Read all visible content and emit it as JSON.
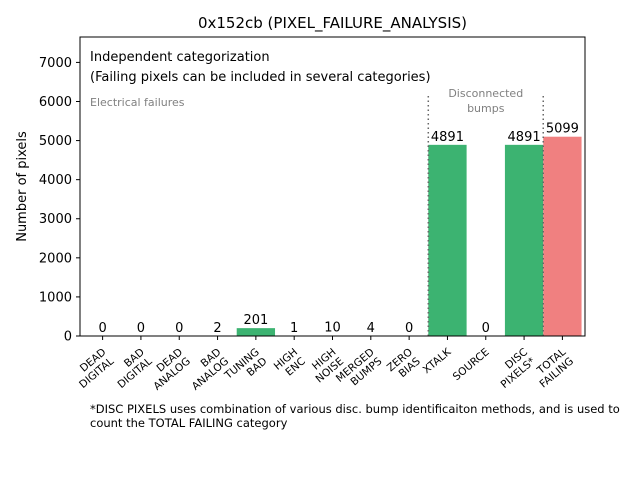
{
  "chart_data": {
    "type": "bar",
    "title": "0x152cb (PIXEL_FAILURE_ANALYSIS)",
    "xlabel": "",
    "ylabel": "Number of pixels",
    "ylim": [
      0,
      7650
    ],
    "yticks": [
      0,
      1000,
      2000,
      3000,
      4000,
      5000,
      6000,
      7000
    ],
    "grid": false,
    "categories": [
      "DEAD\nDIGITAL",
      "BAD\nDIGITAL",
      "DEAD\nANALOG",
      "BAD\nANALOG",
      "TUNING\nBAD",
      "HIGH\nENC",
      "HIGH\nNOISE",
      "MERGED\nBUMPS",
      "ZERO\nBIAS",
      "XTALK",
      "SOURCE",
      "DISC\nPIXELS*",
      "TOTAL\nFAILING"
    ],
    "values": [
      0,
      0,
      0,
      2,
      201,
      1,
      10,
      4,
      0,
      4891,
      0,
      4891,
      5099
    ],
    "bar_colors": [
      "#3cb371",
      "#3cb371",
      "#3cb371",
      "#3cb371",
      "#3cb371",
      "#3cb371",
      "#3cb371",
      "#3cb371",
      "#3cb371",
      "#3cb371",
      "#3cb371",
      "#3cb371",
      "#f08080"
    ],
    "annotations": {
      "categorization_line1": "Independent categorization",
      "categorization_line2": "(Failing pixels can be included in several categories)",
      "electrical": "Electrical failures",
      "disconnected_line1": "Disconnected",
      "disconnected_line2": "bumps"
    },
    "footnote": "*DISC PIXELS uses combination of various disc. bump identificaiton methods, and is used to count the TOTAL FAILING category"
  }
}
